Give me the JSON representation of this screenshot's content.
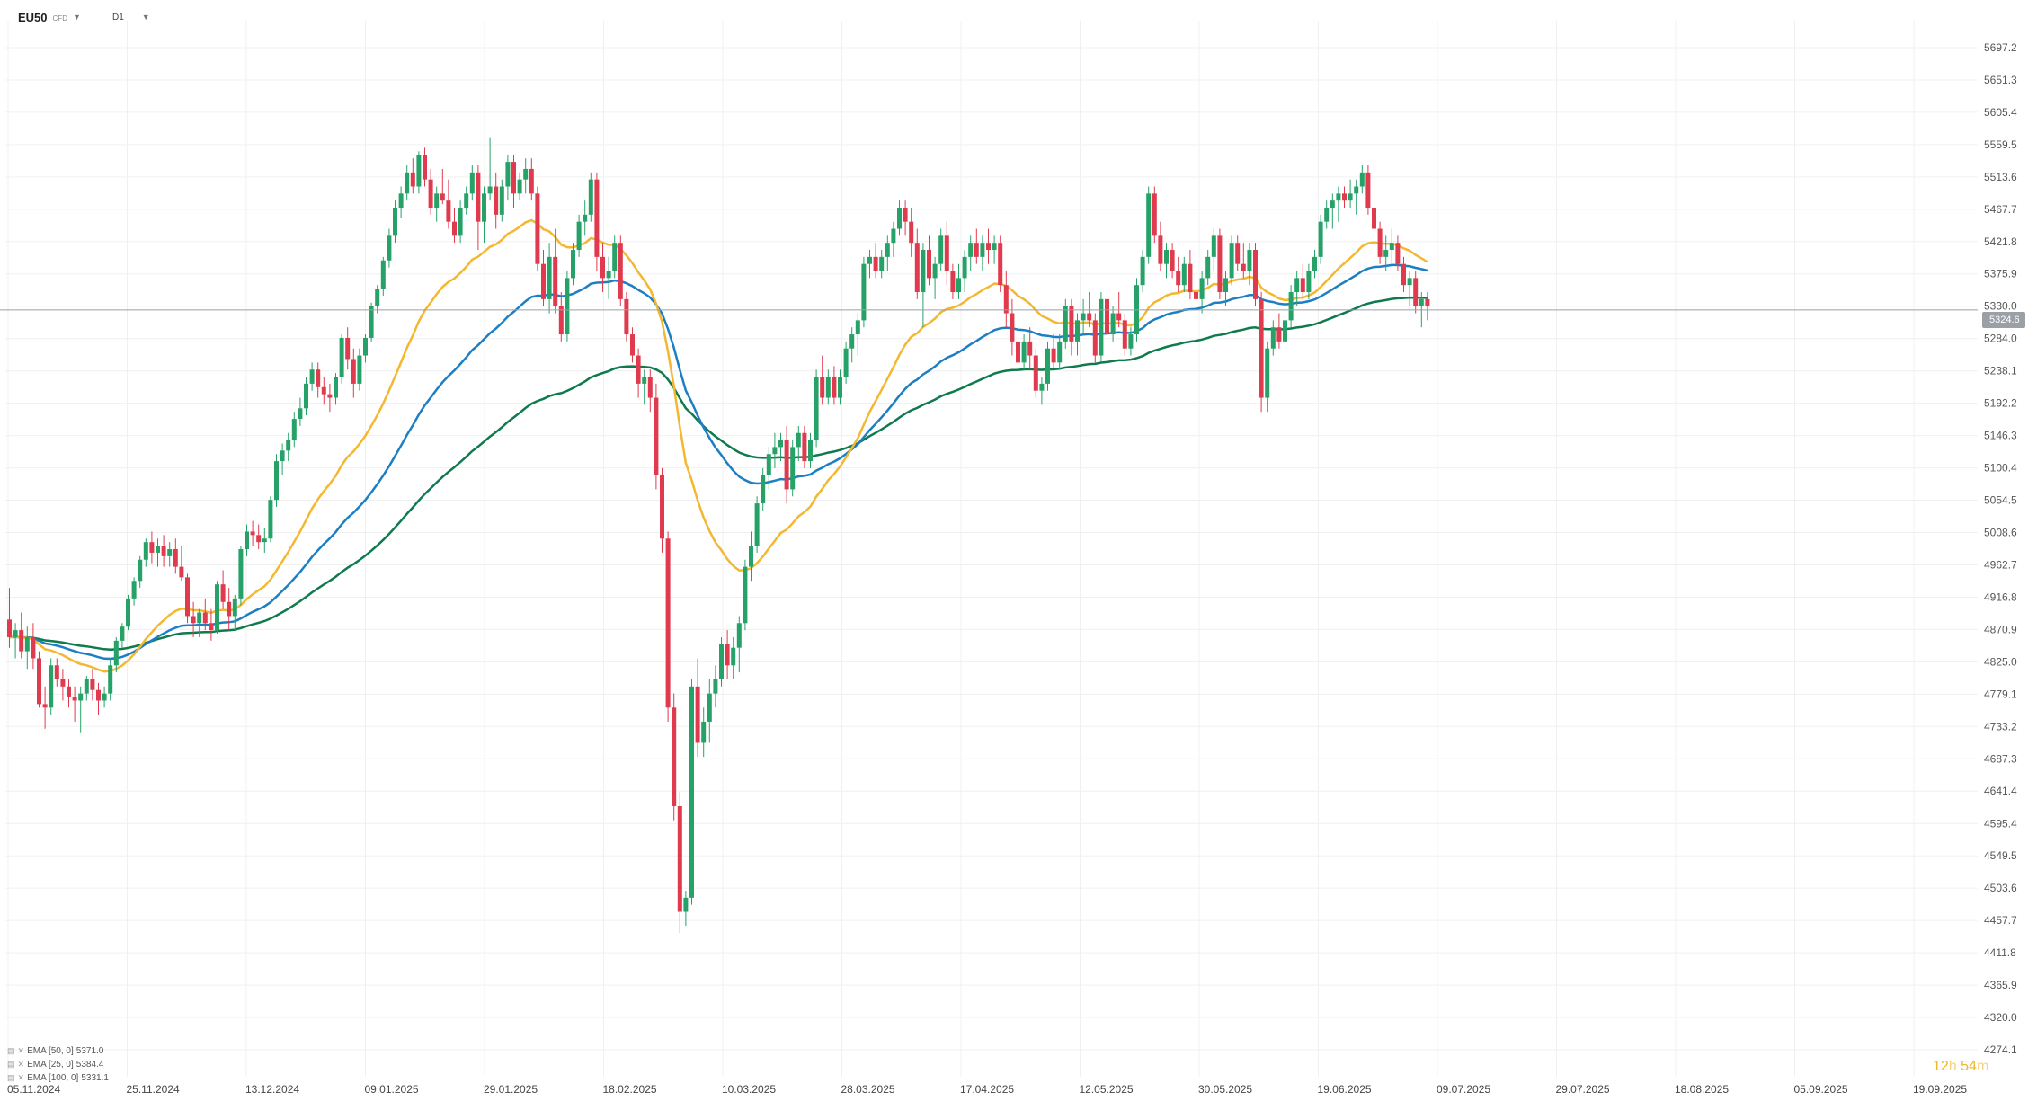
{
  "header": {
    "symbol": "EU50",
    "symbol_type": "CFD",
    "timeframe": "D1"
  },
  "current_price_label": "5324.6",
  "timer": {
    "hours": "12",
    "h_unit": "h",
    "minutes": "54",
    "m_unit": "m"
  },
  "legend": [
    {
      "label": "EMA [50, 0]",
      "value": "5371.0"
    },
    {
      "label": "EMA [25, 0]",
      "value": "5384.4"
    },
    {
      "label": "EMA [100, 0]",
      "value": "5331.1"
    }
  ],
  "colors": {
    "up": "#26a269",
    "down": "#e03a4e",
    "ema25": "#f4b731",
    "ema50": "#1c7fc4",
    "ema100": "#0f7a4d",
    "price_line": "#9aa0a6",
    "grid": "#f0f0f0"
  },
  "chart_data": {
    "type": "candlestick",
    "y_axis": {
      "min": 4274.1,
      "max": 5697.2,
      "ticks": [
        "5697.2",
        "5651.3",
        "5605.4",
        "5559.5",
        "5513.6",
        "5467.7",
        "5421.8",
        "5375.9",
        "5330.0",
        "5284.0",
        "5238.1",
        "5192.2",
        "5146.3",
        "5100.4",
        "5054.5",
        "5008.6",
        "4962.7",
        "4916.8",
        "4870.9",
        "4825.0",
        "4779.1",
        "4733.2",
        "4687.3",
        "4641.4",
        "4595.4",
        "4549.5",
        "4503.6",
        "4457.7",
        "4411.8",
        "4365.9",
        "4320.0",
        "4274.1"
      ]
    },
    "x_axis": {
      "ticks": [
        "05.11.2024",
        "25.11.2024",
        "13.12.2024",
        "09.01.2025",
        "29.01.2025",
        "18.02.2025",
        "10.03.2025",
        "28.03.2025",
        "17.04.2025",
        "12.05.2025",
        "30.05.2025",
        "19.06.2025",
        "09.07.2025",
        "29.07.2025",
        "18.08.2025",
        "05.09.2025",
        "19.09.2025"
      ]
    },
    "current_price": 5324.6,
    "series": [
      {
        "name": "EMA [25, 0]",
        "color": "#f4b731"
      },
      {
        "name": "EMA [50, 0]",
        "color": "#1c7fc4"
      },
      {
        "name": "EMA [100, 0]",
        "color": "#0f7a4d"
      }
    ],
    "ohlc_note": "Daily candles approximated from chart; o,h,l,c per bar",
    "candles": [
      [
        4885,
        4930,
        4845,
        4860
      ],
      [
        4860,
        4880,
        4830,
        4870
      ],
      [
        4870,
        4895,
        4830,
        4840
      ],
      [
        4840,
        4875,
        4815,
        4860
      ],
      [
        4860,
        4880,
        4815,
        4830
      ],
      [
        4830,
        4840,
        4760,
        4765
      ],
      [
        4765,
        4790,
        4730,
        4760
      ],
      [
        4760,
        4830,
        4750,
        4820
      ],
      [
        4820,
        4830,
        4790,
        4800
      ],
      [
        4800,
        4815,
        4770,
        4790
      ],
      [
        4790,
        4800,
        4760,
        4775
      ],
      [
        4775,
        4790,
        4740,
        4770
      ],
      [
        4770,
        4790,
        4725,
        4780
      ],
      [
        4780,
        4805,
        4770,
        4800
      ],
      [
        4800,
        4815,
        4770,
        4785
      ],
      [
        4785,
        4795,
        4750,
        4770
      ],
      [
        4770,
        4790,
        4760,
        4780
      ],
      [
        4780,
        4830,
        4770,
        4820
      ],
      [
        4820,
        4860,
        4810,
        4855
      ],
      [
        4855,
        4880,
        4845,
        4875
      ],
      [
        4875,
        4920,
        4870,
        4915
      ],
      [
        4915,
        4945,
        4905,
        4940
      ],
      [
        4940,
        4975,
        4930,
        4970
      ],
      [
        4970,
        5000,
        4960,
        4995
      ],
      [
        4995,
        5010,
        4965,
        4980
      ],
      [
        4980,
        5000,
        4960,
        4990
      ],
      [
        4990,
        5005,
        4960,
        4975
      ],
      [
        4975,
        4995,
        4960,
        4985
      ],
      [
        4985,
        5000,
        4950,
        4960
      ],
      [
        4960,
        4990,
        4940,
        4945
      ],
      [
        4945,
        4950,
        4880,
        4890
      ],
      [
        4890,
        4910,
        4860,
        4880
      ],
      [
        4880,
        4900,
        4860,
        4895
      ],
      [
        4895,
        4915,
        4870,
        4880
      ],
      [
        4880,
        4900,
        4855,
        4870
      ],
      [
        4870,
        4940,
        4865,
        4935
      ],
      [
        4935,
        4955,
        4900,
        4910
      ],
      [
        4910,
        4930,
        4870,
        4890
      ],
      [
        4890,
        4920,
        4870,
        4915
      ],
      [
        4915,
        4990,
        4905,
        4985
      ],
      [
        4985,
        5020,
        4975,
        5010
      ],
      [
        5010,
        5025,
        4990,
        5005
      ],
      [
        5005,
        5020,
        4985,
        4995
      ],
      [
        4995,
        5015,
        4980,
        5000
      ],
      [
        5000,
        5060,
        4995,
        5055
      ],
      [
        5055,
        5120,
        5045,
        5110
      ],
      [
        5110,
        5135,
        5090,
        5125
      ],
      [
        5125,
        5150,
        5110,
        5140
      ],
      [
        5140,
        5180,
        5130,
        5170
      ],
      [
        5170,
        5200,
        5160,
        5185
      ],
      [
        5185,
        5230,
        5175,
        5220
      ],
      [
        5220,
        5250,
        5210,
        5240
      ],
      [
        5240,
        5250,
        5200,
        5215
      ],
      [
        5215,
        5230,
        5190,
        5205
      ],
      [
        5205,
        5220,
        5180,
        5200
      ],
      [
        5200,
        5235,
        5190,
        5230
      ],
      [
        5230,
        5290,
        5220,
        5285
      ],
      [
        5285,
        5300,
        5240,
        5255
      ],
      [
        5255,
        5270,
        5200,
        5220
      ],
      [
        5220,
        5270,
        5210,
        5260
      ],
      [
        5260,
        5290,
        5250,
        5285
      ],
      [
        5285,
        5335,
        5280,
        5330
      ],
      [
        5330,
        5360,
        5320,
        5355
      ],
      [
        5355,
        5400,
        5345,
        5395
      ],
      [
        5395,
        5440,
        5385,
        5430
      ],
      [
        5430,
        5480,
        5420,
        5470
      ],
      [
        5470,
        5500,
        5455,
        5490
      ],
      [
        5490,
        5530,
        5480,
        5520
      ],
      [
        5520,
        5540,
        5490,
        5500
      ],
      [
        5500,
        5550,
        5490,
        5545
      ],
      [
        5545,
        5555,
        5500,
        5510
      ],
      [
        5510,
        5525,
        5460,
        5470
      ],
      [
        5470,
        5500,
        5450,
        5490
      ],
      [
        5490,
        5525,
        5475,
        5480
      ],
      [
        5480,
        5510,
        5440,
        5450
      ],
      [
        5450,
        5470,
        5420,
        5430
      ],
      [
        5430,
        5480,
        5420,
        5470
      ],
      [
        5470,
        5500,
        5460,
        5490
      ],
      [
        5490,
        5530,
        5480,
        5520
      ],
      [
        5520,
        5530,
        5410,
        5450
      ],
      [
        5450,
        5500,
        5420,
        5490
      ],
      [
        5490,
        5570,
        5480,
        5500
      ],
      [
        5500,
        5520,
        5440,
        5460
      ],
      [
        5460,
        5510,
        5450,
        5500
      ],
      [
        5500,
        5545,
        5480,
        5535
      ],
      [
        5535,
        5545,
        5470,
        5490
      ],
      [
        5490,
        5520,
        5480,
        5510
      ],
      [
        5510,
        5540,
        5490,
        5525
      ],
      [
        5525,
        5540,
        5480,
        5490
      ],
      [
        5490,
        5500,
        5380,
        5390
      ],
      [
        5390,
        5410,
        5330,
        5340
      ],
      [
        5340,
        5420,
        5320,
        5400
      ],
      [
        5400,
        5440,
        5320,
        5330
      ],
      [
        5330,
        5350,
        5280,
        5290
      ],
      [
        5290,
        5380,
        5280,
        5370
      ],
      [
        5370,
        5420,
        5360,
        5410
      ],
      [
        5410,
        5460,
        5400,
        5450
      ],
      [
        5450,
        5480,
        5430,
        5460
      ],
      [
        5460,
        5520,
        5450,
        5510
      ],
      [
        5510,
        5520,
        5380,
        5400
      ],
      [
        5400,
        5420,
        5350,
        5370
      ],
      [
        5370,
        5400,
        5340,
        5380
      ],
      [
        5380,
        5430,
        5370,
        5420
      ],
      [
        5420,
        5430,
        5330,
        5340
      ],
      [
        5340,
        5350,
        5280,
        5290
      ],
      [
        5290,
        5300,
        5250,
        5260
      ],
      [
        5260,
        5270,
        5200,
        5220
      ],
      [
        5220,
        5240,
        5190,
        5230
      ],
      [
        5230,
        5240,
        5180,
        5200
      ],
      [
        5200,
        5220,
        5070,
        5090
      ],
      [
        5090,
        5100,
        4980,
        5000
      ],
      [
        5000,
        5010,
        4740,
        4760
      ],
      [
        4760,
        4780,
        4600,
        4620
      ],
      [
        4620,
        4640,
        4440,
        4470
      ],
      [
        4470,
        4500,
        4450,
        4490
      ],
      [
        4490,
        4800,
        4480,
        4790
      ],
      [
        4790,
        4830,
        4690,
        4710
      ],
      [
        4710,
        4760,
        4690,
        4740
      ],
      [
        4740,
        4800,
        4710,
        4780
      ],
      [
        4780,
        4820,
        4760,
        4800
      ],
      [
        4800,
        4860,
        4790,
        4850
      ],
      [
        4850,
        4870,
        4800,
        4820
      ],
      [
        4820,
        4860,
        4800,
        4845
      ],
      [
        4845,
        4890,
        4810,
        4880
      ],
      [
        4880,
        4970,
        4870,
        4960
      ],
      [
        4960,
        5010,
        4940,
        4990
      ],
      [
        4990,
        5060,
        4980,
        5050
      ],
      [
        5050,
        5100,
        5040,
        5090
      ],
      [
        5090,
        5130,
        5070,
        5120
      ],
      [
        5120,
        5150,
        5100,
        5130
      ],
      [
        5130,
        5150,
        5110,
        5140
      ],
      [
        5140,
        5160,
        5050,
        5070
      ],
      [
        5070,
        5140,
        5060,
        5130
      ],
      [
        5130,
        5160,
        5110,
        5150
      ],
      [
        5150,
        5160,
        5100,
        5110
      ],
      [
        5110,
        5150,
        5100,
        5140
      ],
      [
        5140,
        5240,
        5130,
        5230
      ],
      [
        5230,
        5260,
        5190,
        5200
      ],
      [
        5200,
        5240,
        5190,
        5230
      ],
      [
        5230,
        5245,
        5190,
        5200
      ],
      [
        5200,
        5240,
        5190,
        5230
      ],
      [
        5230,
        5280,
        5220,
        5270
      ],
      [
        5270,
        5300,
        5250,
        5290
      ],
      [
        5290,
        5320,
        5260,
        5310
      ],
      [
        5310,
        5400,
        5300,
        5390
      ],
      [
        5390,
        5410,
        5370,
        5400
      ],
      [
        5400,
        5420,
        5370,
        5380
      ],
      [
        5380,
        5410,
        5370,
        5400
      ],
      [
        5400,
        5430,
        5380,
        5420
      ],
      [
        5420,
        5450,
        5400,
        5440
      ],
      [
        5440,
        5480,
        5430,
        5470
      ],
      [
        5470,
        5480,
        5430,
        5450
      ],
      [
        5450,
        5470,
        5400,
        5420
      ],
      [
        5420,
        5440,
        5340,
        5350
      ],
      [
        5350,
        5420,
        5300,
        5410
      ],
      [
        5410,
        5430,
        5360,
        5370
      ],
      [
        5370,
        5400,
        5340,
        5390
      ],
      [
        5390,
        5440,
        5380,
        5430
      ],
      [
        5430,
        5450,
        5360,
        5380
      ],
      [
        5380,
        5390,
        5340,
        5350
      ],
      [
        5350,
        5390,
        5340,
        5370
      ],
      [
        5370,
        5410,
        5350,
        5400
      ],
      [
        5400,
        5430,
        5380,
        5420
      ],
      [
        5420,
        5440,
        5390,
        5400
      ],
      [
        5400,
        5430,
        5380,
        5420
      ],
      [
        5420,
        5440,
        5390,
        5410
      ],
      [
        5410,
        5430,
        5390,
        5420
      ],
      [
        5420,
        5430,
        5350,
        5360
      ],
      [
        5360,
        5380,
        5300,
        5320
      ],
      [
        5320,
        5340,
        5260,
        5280
      ],
      [
        5280,
        5300,
        5230,
        5250
      ],
      [
        5250,
        5290,
        5240,
        5280
      ],
      [
        5280,
        5300,
        5240,
        5260
      ],
      [
        5260,
        5270,
        5200,
        5210
      ],
      [
        5210,
        5230,
        5190,
        5220
      ],
      [
        5220,
        5280,
        5210,
        5270
      ],
      [
        5270,
        5290,
        5240,
        5250
      ],
      [
        5250,
        5290,
        5240,
        5280
      ],
      [
        5280,
        5340,
        5270,
        5330
      ],
      [
        5330,
        5340,
        5260,
        5280
      ],
      [
        5280,
        5320,
        5260,
        5310
      ],
      [
        5310,
        5340,
        5290,
        5320
      ],
      [
        5320,
        5350,
        5300,
        5310
      ],
      [
        5310,
        5320,
        5250,
        5260
      ],
      [
        5260,
        5350,
        5250,
        5340
      ],
      [
        5340,
        5350,
        5280,
        5290
      ],
      [
        5290,
        5330,
        5280,
        5320
      ],
      [
        5320,
        5350,
        5300,
        5310
      ],
      [
        5310,
        5320,
        5260,
        5270
      ],
      [
        5270,
        5300,
        5260,
        5290
      ],
      [
        5290,
        5370,
        5280,
        5360
      ],
      [
        5360,
        5410,
        5350,
        5400
      ],
      [
        5400,
        5500,
        5390,
        5490
      ],
      [
        5490,
        5500,
        5420,
        5430
      ],
      [
        5430,
        5450,
        5380,
        5390
      ],
      [
        5390,
        5420,
        5370,
        5410
      ],
      [
        5410,
        5420,
        5370,
        5380
      ],
      [
        5380,
        5400,
        5350,
        5360
      ],
      [
        5360,
        5400,
        5350,
        5390
      ],
      [
        5390,
        5410,
        5340,
        5350
      ],
      [
        5350,
        5370,
        5330,
        5340
      ],
      [
        5340,
        5380,
        5320,
        5370
      ],
      [
        5370,
        5410,
        5360,
        5400
      ],
      [
        5400,
        5440,
        5380,
        5430
      ],
      [
        5430,
        5440,
        5340,
        5350
      ],
      [
        5350,
        5380,
        5330,
        5370
      ],
      [
        5370,
        5430,
        5360,
        5420
      ],
      [
        5420,
        5430,
        5380,
        5390
      ],
      [
        5390,
        5420,
        5370,
        5380
      ],
      [
        5380,
        5420,
        5360,
        5410
      ],
      [
        5410,
        5420,
        5330,
        5340
      ],
      [
        5340,
        5350,
        5180,
        5200
      ],
      [
        5200,
        5280,
        5180,
        5270
      ],
      [
        5270,
        5310,
        5260,
        5300
      ],
      [
        5300,
        5320,
        5270,
        5280
      ],
      [
        5280,
        5320,
        5270,
        5310
      ],
      [
        5310,
        5360,
        5300,
        5350
      ],
      [
        5350,
        5380,
        5330,
        5370
      ],
      [
        5370,
        5390,
        5340,
        5350
      ],
      [
        5350,
        5390,
        5340,
        5380
      ],
      [
        5380,
        5410,
        5370,
        5400
      ],
      [
        5400,
        5460,
        5390,
        5450
      ],
      [
        5450,
        5480,
        5440,
        5470
      ],
      [
        5470,
        5490,
        5440,
        5480
      ],
      [
        5480,
        5500,
        5450,
        5490
      ],
      [
        5490,
        5500,
        5470,
        5480
      ],
      [
        5480,
        5510,
        5470,
        5490
      ],
      [
        5490,
        5510,
        5460,
        5500
      ],
      [
        5500,
        5530,
        5490,
        5520
      ],
      [
        5520,
        5530,
        5460,
        5470
      ],
      [
        5470,
        5480,
        5430,
        5440
      ],
      [
        5440,
        5450,
        5390,
        5400
      ],
      [
        5400,
        5430,
        5380,
        5410
      ],
      [
        5410,
        5440,
        5390,
        5420
      ],
      [
        5420,
        5430,
        5380,
        5390
      ],
      [
        5390,
        5400,
        5350,
        5360
      ],
      [
        5360,
        5380,
        5330,
        5370
      ],
      [
        5370,
        5380,
        5320,
        5330
      ],
      [
        5330,
        5350,
        5300,
        5340
      ],
      [
        5340,
        5350,
        5310,
        5330
      ]
    ]
  }
}
